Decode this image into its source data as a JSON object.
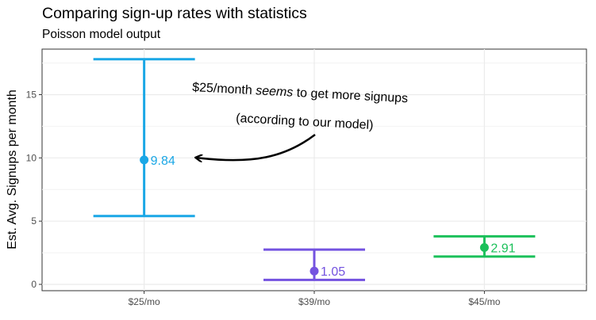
{
  "title": "Comparing sign-up rates with statistics",
  "subtitle": "Poisson model output",
  "chart_data": {
    "type": "errorbar",
    "ylabel": "Est. Avg. Signups per month",
    "xlabel": "",
    "categories": [
      "$25/mo",
      "$39/mo",
      "$45/mo"
    ],
    "estimates": [
      9.84,
      1.05,
      2.91
    ],
    "lower": [
      5.4,
      0.35,
      2.2
    ],
    "upper": [
      17.8,
      2.75,
      3.8
    ],
    "labels": [
      "9.84",
      "1.05",
      "2.91"
    ],
    "colors": [
      "#1aa7e6",
      "#7453e0",
      "#1bc05a"
    ],
    "yticks": [
      0,
      5,
      10,
      15
    ],
    "ylim": [
      -0.5,
      18.6
    ],
    "grid": true,
    "legend": "none"
  },
  "annotation": {
    "pre": "$25/month ",
    "emph": "seems",
    "post": " to get more signups",
    "line2": "(according to our model)"
  }
}
